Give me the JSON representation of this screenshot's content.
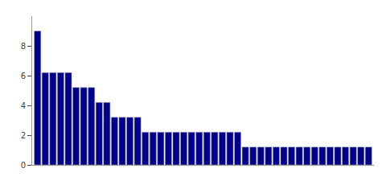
{
  "chart_data": {
    "type": "bar",
    "categories": [
      null,
      null,
      null,
      null,
      null,
      null,
      null,
      null,
      null,
      null,
      null,
      null,
      null,
      null,
      null,
      null,
      null,
      null,
      null,
      null,
      null,
      null,
      null,
      null,
      null,
      null,
      null,
      null,
      null,
      null,
      null,
      null,
      null,
      null,
      null,
      null,
      null,
      null,
      null,
      null,
      null,
      null,
      null,
      null
    ],
    "values": [
      9,
      6.2,
      6.2,
      6.2,
      6.2,
      5.2,
      5.2,
      5.2,
      4.2,
      4.2,
      3.2,
      3.2,
      3.2,
      3.2,
      2.2,
      2.2,
      2.2,
      2.2,
      2.2,
      2.2,
      2.2,
      2.2,
      2.2,
      2.2,
      2.2,
      2.2,
      2.2,
      1.2,
      1.2,
      1.2,
      1.2,
      1.2,
      1.2,
      1.2,
      1.2,
      1.2,
      1.2,
      1.2,
      1.2,
      1.2,
      1.2,
      1.2,
      1.2,
      1.2
    ],
    "color": "#00008B",
    "ylim": [
      0,
      10
    ],
    "yticks": [
      0,
      2,
      4,
      6,
      8
    ],
    "grid": false,
    "tick_labels": "y"
  }
}
